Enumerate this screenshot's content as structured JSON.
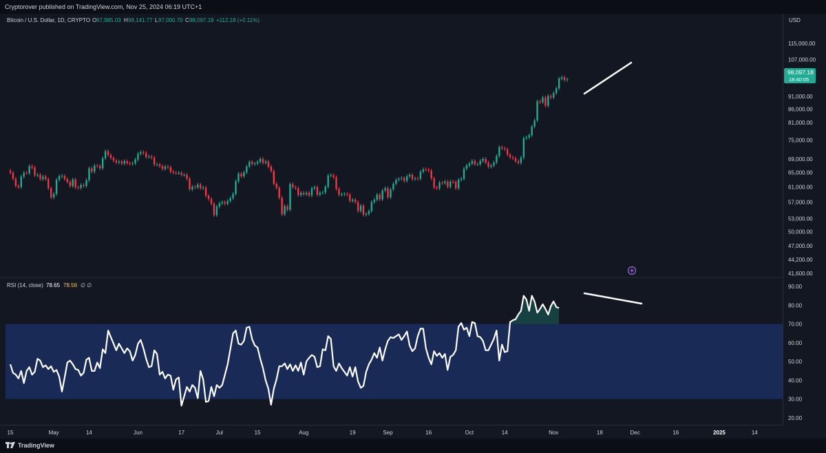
{
  "header": {
    "published": "Cryptorover published on TradingView.com, Nov 25, 2024 06:19 UTC+1"
  },
  "price_pane": {
    "symbol": "Bitcoin / U.S. Dollar, 1D, CRYPTO",
    "o_label": "O",
    "o_value": "97,985.03",
    "h_label": "H",
    "h_value": "98,141.77",
    "l_label": "L",
    "l_value": "97,000.70",
    "c_label": "C",
    "c_value": "98,097.18",
    "change": "+112.18 (+0.11%)",
    "currency": "USD",
    "last_price": "98,097.18",
    "countdown": "18:40:05"
  },
  "rsi_pane": {
    "label": "RSI (14, close)",
    "value1": "78.65",
    "value2": "78.56",
    "extra": "∅ ∅"
  },
  "footer": {
    "brand": "TradingView"
  },
  "colors": {
    "background": "#131722",
    "up": "#22ab94",
    "down": "#f23645",
    "rsi_band": "#1a2a56",
    "rsi_line": "#ffffff"
  },
  "chart_data": [
    {
      "type": "candlestick",
      "title": "Bitcoin / U.S. Dollar, 1D, CRYPTO",
      "y_ticks": [
        115000,
        107000,
        98097.18,
        91000,
        86000,
        81000,
        75000,
        69000,
        65000,
        61000,
        57000,
        53000,
        50000,
        47000,
        44200,
        41600
      ],
      "y_tick_labels": [
        "115,000.00",
        "107,000.00",
        "98,097.18",
        "91,000.00",
        "86,000.00",
        "81,000.00",
        "75,000.00",
        "69,000.00",
        "65,000.00",
        "61,000.00",
        "57,000.00",
        "53,000.00",
        "50,000.00",
        "47,000.00",
        "44,200.00",
        "41,600.00"
      ],
      "log_scale": true,
      "x_ticks": [
        "15",
        "May",
        "14",
        "Jun",
        "17",
        "Jul",
        "15",
        "Aug",
        "19",
        "Sep",
        "16",
        "Oct",
        "14",
        "Nov",
        "18",
        "Dec",
        "16",
        "2025",
        "14"
      ],
      "x_range": [
        "2024-04-15",
        "2025-01-19"
      ],
      "series_start": "2024-04-15",
      "close": [
        64900,
        63200,
        61200,
        60900,
        63800,
        64900,
        64800,
        66800,
        66400,
        64200,
        64300,
        63100,
        63800,
        63100,
        60600,
        58200,
        59100,
        62900,
        63900,
        64000,
        63100,
        62300,
        61200,
        63000,
        60800,
        60700,
        61500,
        61200,
        62800,
        66200,
        65200,
        67000,
        66900,
        66200,
        69200,
        71400,
        70200,
        69300,
        68500,
        67900,
        68200,
        67600,
        68300,
        67700,
        67500,
        67700,
        68800,
        70600,
        71100,
        70800,
        69600,
        69700,
        69400,
        67300,
        67300,
        66800,
        66000,
        66700,
        66500,
        65200,
        64900,
        64800,
        64900,
        64300,
        64300,
        63200,
        60300,
        61000,
        60800,
        61600,
        60600,
        60800,
        58600,
        57800,
        56600,
        53800,
        55900,
        56700,
        57000,
        56600,
        57300,
        58000,
        59100,
        62500,
        64600,
        63900,
        65000,
        66700,
        68100,
        67500,
        67600,
        68100,
        69000,
        67800,
        68200,
        66700,
        65400,
        61800,
        60700,
        58100,
        54000,
        56000,
        55100,
        61700,
        60900,
        60600,
        58800,
        59400,
        59000,
        59400,
        58700,
        60600,
        60900,
        58900,
        59400,
        59500,
        61000,
        64100,
        64200,
        63600,
        60400,
        58900,
        59000,
        59100,
        58900,
        57300,
        57600,
        57000,
        54800,
        56100,
        53900,
        54100,
        54800,
        57000,
        57600,
        58900,
        57700,
        60000,
        60600,
        58200,
        60300,
        61800,
        62900,
        63200,
        63400,
        62600,
        63900,
        64300,
        63100,
        63300,
        63200,
        65200,
        65900,
        65800,
        65500,
        63300,
        60800,
        60600,
        62100,
        62000,
        62400,
        61000,
        62400,
        62300,
        60600,
        62900,
        63200,
        66100,
        67000,
        67600,
        68400,
        67400,
        67400,
        68400,
        69000,
        67900,
        66600,
        67000,
        67900,
        69900,
        72700,
        72300,
        72000,
        70300,
        69500,
        69200,
        68300,
        67800,
        69400,
        75600,
        75900,
        76600,
        79600,
        81800,
        89000,
        88700,
        90500,
        87300,
        91100,
        90600,
        92300,
        94300,
        98400,
        99000,
        97800,
        98097.18
      ],
      "rsi": {
        "label": "RSI (14, close)",
        "y_ticks": [
          90,
          80,
          70,
          60,
          50,
          40,
          30,
          20
        ],
        "band": [
          30,
          70
        ],
        "values": [
          48.5,
          44.0,
          43.0,
          41.0,
          45.0,
          38.5,
          45.0,
          47.0,
          43.0,
          44.5,
          51.5,
          50.5,
          47.0,
          48.0,
          46.0,
          47.5,
          44.5,
          45.5,
          42.0,
          34.0,
          41.5,
          49.5,
          50.5,
          48.5,
          46.0,
          45.5,
          42.5,
          44.0,
          51.0,
          52.0,
          45.0,
          45.0,
          49.5,
          46.5,
          56.5,
          54.5,
          66.5,
          63.0,
          59.5,
          56.0,
          59.5,
          57.0,
          54.5,
          57.0,
          55.5,
          50.5,
          53.5,
          59.5,
          61.5,
          57.0,
          51.5,
          47.0,
          47.5,
          56.0,
          54.0,
          43.0,
          44.5,
          41.0,
          43.0,
          42.5,
          35.0,
          40.5,
          41.5,
          26.5,
          31.5,
          36.5,
          34.0,
          37.5,
          36.0,
          30.5,
          45.0,
          40.5,
          28.5,
          29.0,
          36.5,
          31.5,
          37.5,
          36.0,
          37.5,
          43.0,
          48.5,
          56.5,
          65.0,
          66.5,
          59.5,
          59.0,
          61.0,
          68.0,
          68.5,
          62.0,
          58.5,
          57.5,
          51.5,
          46.5,
          40.0,
          35.5,
          27.0,
          35.5,
          40.5,
          47.5,
          47.5,
          49.0,
          46.0,
          48.5,
          45.0,
          48.0,
          45.0,
          49.5,
          43.0,
          50.0,
          52.0,
          53.5,
          52.5,
          47.0,
          47.5,
          56.5,
          56.0,
          63.5,
          62.0,
          47.5,
          45.0,
          49.0,
          46.5,
          44.5,
          42.5,
          47.0,
          42.0,
          47.0,
          39.5,
          36.0,
          37.0,
          44.5,
          48.5,
          51.0,
          54.5,
          52.0,
          57.5,
          50.5,
          56.5,
          61.0,
          63.0,
          62.5,
          63.5,
          64.5,
          61.5,
          63.5,
          66.0,
          58.5,
          55.5,
          57.0,
          63.5,
          67.5,
          67.5,
          57.0,
          52.0,
          48.5,
          55.5,
          53.0,
          54.5,
          52.0,
          54.0,
          45.5,
          52.5,
          53.5,
          56.0,
          68.5,
          70.5,
          67.0,
          68.0,
          63.5,
          71.0,
          70.5,
          63.5,
          63.0,
          61.0,
          56.0,
          56.0,
          59.0,
          62.0,
          66.5,
          50.5,
          59.0,
          55.0,
          55.5,
          71.0,
          72.0,
          72.5,
          75.0,
          77.0,
          85.0,
          83.0,
          77.0,
          85.0,
          82.0,
          76.0,
          78.0,
          80.5,
          78.0,
          75.0,
          79.5,
          82.0,
          79.0,
          78.5
        ]
      }
    }
  ]
}
